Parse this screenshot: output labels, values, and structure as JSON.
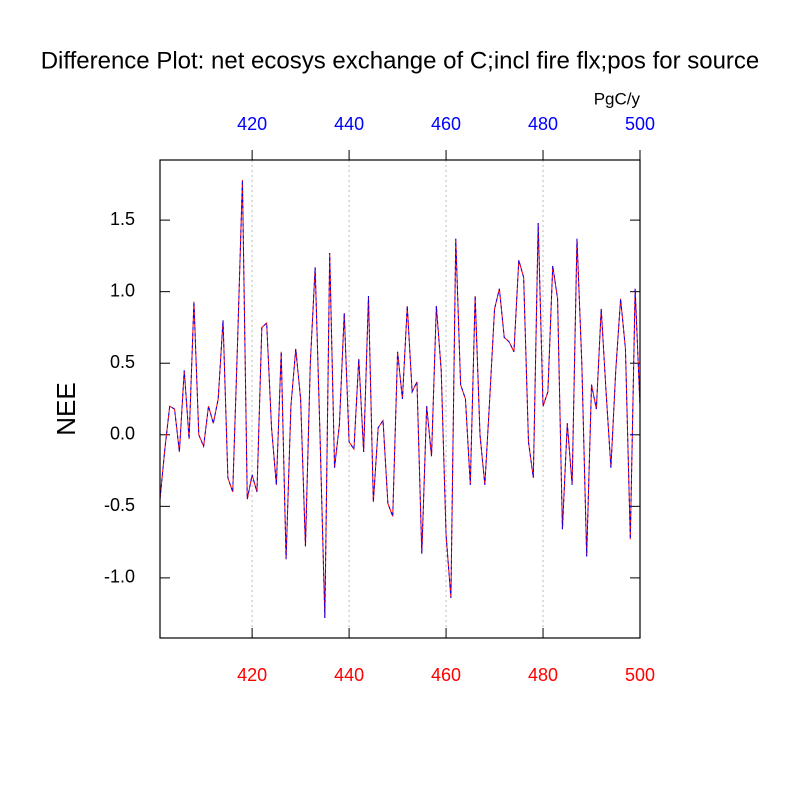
{
  "chart_data": {
    "type": "line",
    "title": "Difference Plot: net ecosys exchange of C;incl fire flx;pos for source",
    "y_label": "NEE",
    "top_unit_label": "PgC/y",
    "x": [
      401,
      402,
      403,
      404,
      405,
      406,
      407,
      408,
      409,
      410,
      411,
      412,
      413,
      414,
      415,
      416,
      417,
      418,
      419,
      420,
      421,
      422,
      423,
      424,
      425,
      426,
      427,
      428,
      429,
      430,
      431,
      432,
      433,
      434,
      435,
      436,
      437,
      438,
      439,
      440,
      441,
      442,
      443,
      444,
      445,
      446,
      447,
      448,
      449,
      450,
      451,
      452,
      453,
      454,
      455,
      456,
      457,
      458,
      459,
      460,
      461,
      462,
      463,
      464,
      465,
      466,
      467,
      468,
      469,
      470,
      471,
      472,
      473,
      474,
      475,
      476,
      477,
      478,
      479,
      480,
      481,
      482,
      483,
      484,
      485,
      486,
      487,
      488,
      489,
      490,
      491,
      492,
      493,
      494,
      495,
      496,
      497,
      498,
      499,
      500
    ],
    "series": [
      {
        "color": "#ff0000",
        "dashed": false,
        "values": [
          -0.45,
          -0.1,
          0.2,
          0.18,
          -0.12,
          0.45,
          -0.03,
          0.93,
          0.0,
          -0.08,
          0.2,
          0.08,
          0.25,
          0.8,
          -0.3,
          -0.4,
          0.65,
          1.78,
          -0.45,
          -0.28,
          -0.4,
          0.75,
          0.78,
          0.05,
          -0.35,
          0.58,
          -0.87,
          0.2,
          0.6,
          0.25,
          -0.78,
          0.5,
          1.17,
          0.0,
          -1.28,
          1.27,
          -0.23,
          0.07,
          0.85,
          -0.05,
          -0.1,
          0.53,
          -0.12,
          0.97,
          -0.47,
          0.05,
          0.1,
          -0.48,
          -0.57,
          0.58,
          0.25,
          0.9,
          0.3,
          0.37,
          -0.83,
          0.2,
          -0.15,
          0.9,
          0.45,
          -0.7,
          -1.14,
          1.37,
          0.35,
          0.25,
          -0.35,
          0.97,
          0.0,
          -0.35,
          0.25,
          0.88,
          1.02,
          0.68,
          0.65,
          0.58,
          1.22,
          1.1,
          -0.05,
          -0.3,
          1.48,
          0.2,
          0.3,
          1.18,
          0.95,
          -0.66,
          0.08,
          -0.35,
          1.37,
          0.5,
          -0.85,
          0.35,
          0.18,
          0.88,
          0.3,
          -0.23,
          0.45,
          0.95,
          0.6,
          -0.73,
          1.02,
          0.2
        ]
      },
      {
        "color": "#0000ff",
        "dashed": true,
        "values": [
          -0.45,
          -0.1,
          0.2,
          0.18,
          -0.12,
          0.45,
          -0.03,
          0.93,
          0.0,
          -0.08,
          0.2,
          0.08,
          0.25,
          0.8,
          -0.3,
          -0.4,
          0.65,
          1.78,
          -0.45,
          -0.28,
          -0.4,
          0.75,
          0.78,
          0.05,
          -0.35,
          0.58,
          -0.87,
          0.2,
          0.6,
          0.25,
          -0.78,
          0.5,
          1.17,
          0.0,
          -1.28,
          1.27,
          -0.23,
          0.07,
          0.85,
          -0.05,
          -0.1,
          0.53,
          -0.12,
          0.97,
          -0.47,
          0.05,
          0.1,
          -0.48,
          -0.57,
          0.58,
          0.25,
          0.9,
          0.3,
          0.37,
          -0.83,
          0.2,
          -0.15,
          0.9,
          0.45,
          -0.7,
          -1.14,
          1.37,
          0.35,
          0.25,
          -0.35,
          0.97,
          0.0,
          -0.35,
          0.25,
          0.88,
          1.02,
          0.68,
          0.65,
          0.58,
          1.22,
          1.1,
          -0.05,
          -0.3,
          1.48,
          0.2,
          0.3,
          1.18,
          0.95,
          -0.66,
          0.08,
          -0.35,
          1.37,
          0.5,
          -0.85,
          0.35,
          0.18,
          0.88,
          0.3,
          -0.23,
          0.45,
          0.95,
          0.6,
          -0.73,
          1.02,
          0.2
        ]
      }
    ],
    "xlim": [
      401,
      500
    ],
    "xticks": [
      420,
      440,
      460,
      480,
      500
    ],
    "xtick_color": "#ff0000",
    "top_xticks": [
      420,
      440,
      460,
      480,
      500
    ],
    "top_xtick_color": "#0000ff",
    "ylim": [
      -1.42,
      1.92
    ],
    "yticks": [
      {
        "value": -1,
        "label": "-1.0"
      },
      {
        "value": -0.5,
        "label": "-0.5"
      },
      {
        "value": 0,
        "label": "0.0"
      },
      {
        "value": 0.5,
        "label": "0.5"
      },
      {
        "value": 1,
        "label": "1.0"
      },
      {
        "value": 1.5,
        "label": "1.5"
      }
    ],
    "grid": true
  }
}
